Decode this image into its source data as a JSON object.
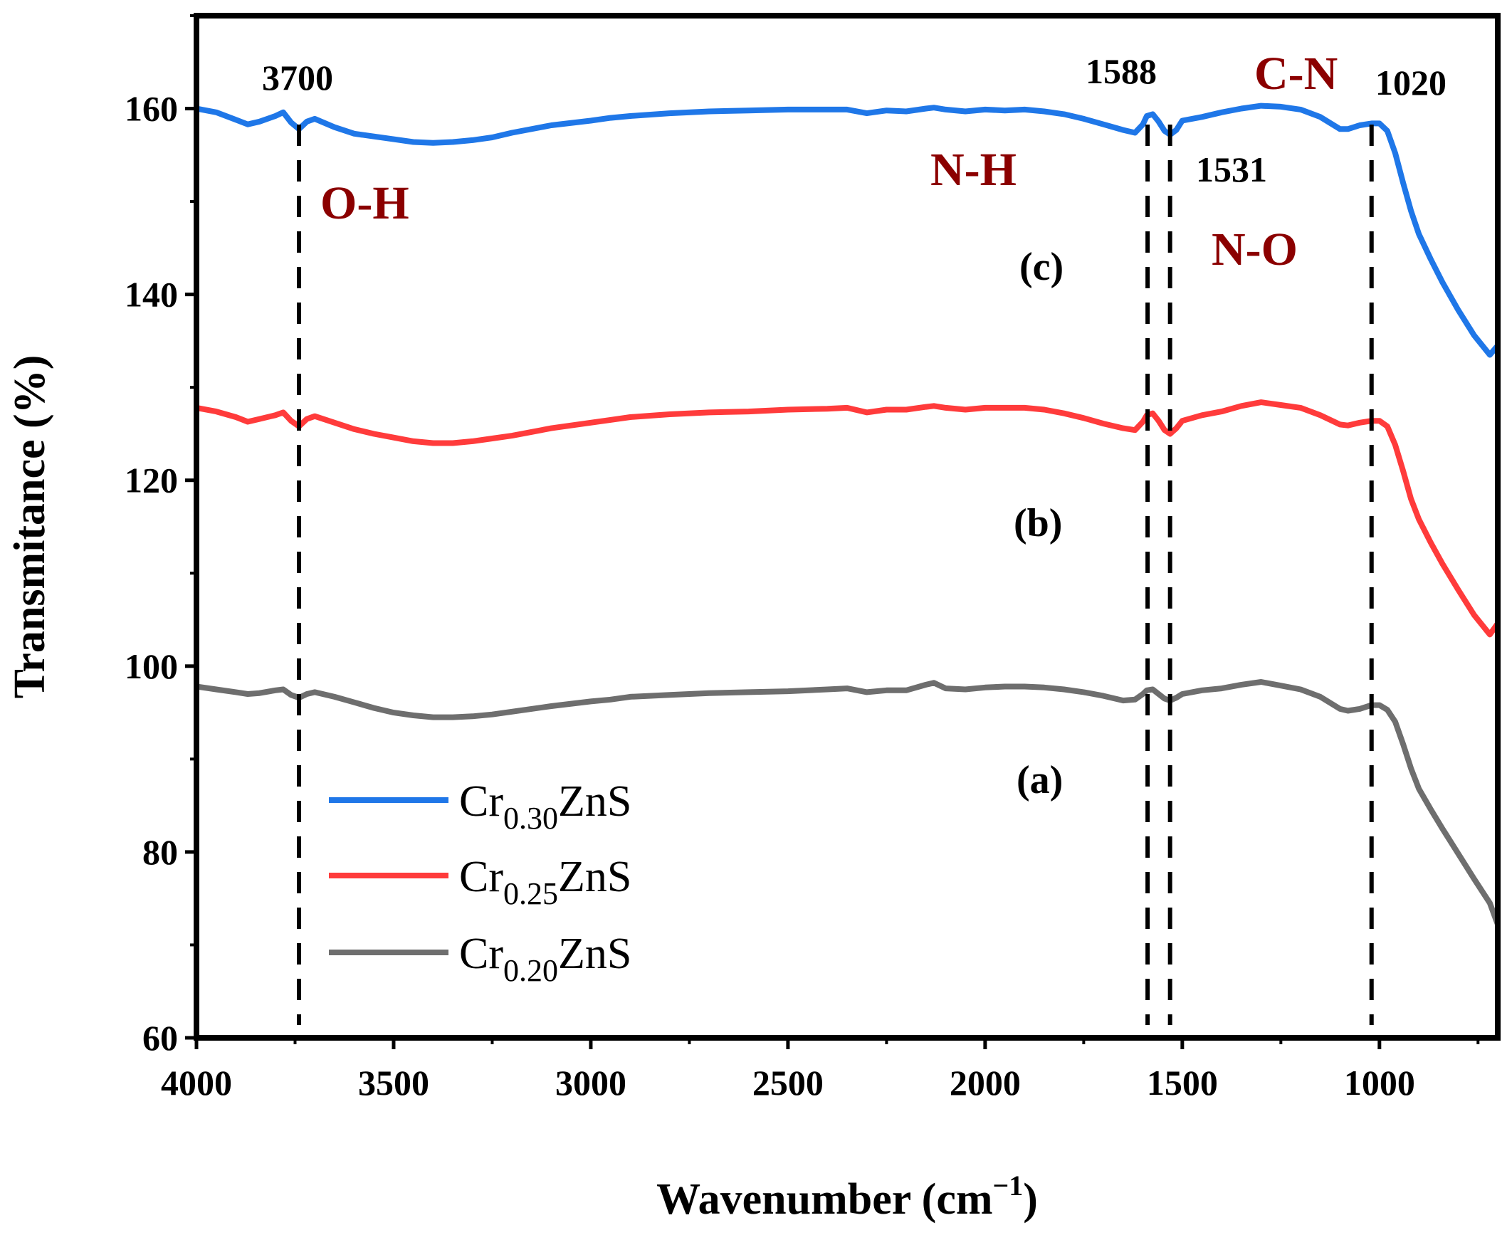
{
  "chart_data": {
    "type": "line",
    "title": "",
    "xlabel": "Wavenumber (cm",
    "xlabel_sup": "−1",
    "xlabel_close": ")",
    "ylabel": "Transmitance (%)",
    "xlim": [
      4000,
      700
    ],
    "ylim": [
      60,
      170
    ],
    "x_ticks": [
      4000,
      3500,
      3000,
      2500,
      2000,
      1500,
      1000
    ],
    "y_ticks": [
      60,
      80,
      100,
      120,
      140,
      160
    ],
    "grid": false,
    "legend_position": "lower-left",
    "series": [
      {
        "name": "Cr0.30ZnS",
        "label_base": "Cr",
        "label_sub": "0.30",
        "label_suffix": "ZnS",
        "color": "#1f77e8",
        "curve_label": "(c)",
        "x": [
          4000,
          3950,
          3900,
          3870,
          3840,
          3800,
          3780,
          3760,
          3740,
          3720,
          3700,
          3650,
          3600,
          3550,
          3500,
          3450,
          3400,
          3350,
          3300,
          3250,
          3200,
          3100,
          3000,
          2950,
          2900,
          2800,
          2700,
          2600,
          2500,
          2400,
          2350,
          2300,
          2250,
          2200,
          2150,
          2130,
          2100,
          2050,
          2000,
          1950,
          1900,
          1850,
          1800,
          1750,
          1700,
          1650,
          1620,
          1600,
          1590,
          1575,
          1560,
          1545,
          1531,
          1515,
          1500,
          1450,
          1400,
          1350,
          1300,
          1250,
          1200,
          1150,
          1100,
          1080,
          1050,
          1020,
          1000,
          980,
          960,
          940,
          920,
          900,
          870,
          840,
          800,
          760,
          720,
          700
        ],
        "values": [
          160,
          159.6,
          158.8,
          158.3,
          158.6,
          159.2,
          159.6,
          158.5,
          157.8,
          158.6,
          158.9,
          158.0,
          157.3,
          157.0,
          156.7,
          156.4,
          156.3,
          156.4,
          156.6,
          156.9,
          157.4,
          158.2,
          158.7,
          159.0,
          159.2,
          159.5,
          159.7,
          159.8,
          159.9,
          159.9,
          159.9,
          159.5,
          159.8,
          159.7,
          160.0,
          160.1,
          159.9,
          159.7,
          159.9,
          159.8,
          159.9,
          159.7,
          159.4,
          158.9,
          158.3,
          157.7,
          157.4,
          158.3,
          159.2,
          159.4,
          158.6,
          157.6,
          157.2,
          157.7,
          158.7,
          159.1,
          159.6,
          160.0,
          160.3,
          160.2,
          159.9,
          159.1,
          157.8,
          157.8,
          158.2,
          158.4,
          158.4,
          157.6,
          155.2,
          152.0,
          149.0,
          146.5,
          143.8,
          141.3,
          138.3,
          135.6,
          133.5,
          134.5
        ]
      },
      {
        "name": "Cr0.25ZnS",
        "label_base": "Cr",
        "label_sub": "0.25",
        "label_suffix": "ZnS",
        "color": "#ff3b3b",
        "curve_label": "(b)",
        "x": [
          4000,
          3950,
          3900,
          3870,
          3840,
          3800,
          3780,
          3760,
          3740,
          3720,
          3700,
          3650,
          3600,
          3550,
          3500,
          3450,
          3400,
          3350,
          3300,
          3250,
          3200,
          3100,
          3000,
          2950,
          2900,
          2800,
          2700,
          2600,
          2500,
          2400,
          2350,
          2300,
          2250,
          2200,
          2150,
          2130,
          2100,
          2050,
          2000,
          1950,
          1900,
          1850,
          1800,
          1750,
          1700,
          1650,
          1620,
          1600,
          1590,
          1575,
          1560,
          1545,
          1531,
          1515,
          1500,
          1450,
          1400,
          1350,
          1300,
          1250,
          1200,
          1150,
          1100,
          1080,
          1050,
          1020,
          1000,
          980,
          960,
          940,
          920,
          900,
          870,
          840,
          800,
          760,
          720,
          700
        ],
        "values": [
          127.8,
          127.4,
          126.8,
          126.3,
          126.6,
          127.0,
          127.3,
          126.4,
          125.8,
          126.6,
          126.9,
          126.2,
          125.5,
          125.0,
          124.6,
          124.2,
          124.0,
          124.0,
          124.2,
          124.5,
          124.8,
          125.6,
          126.2,
          126.5,
          126.8,
          127.1,
          127.3,
          127.4,
          127.6,
          127.7,
          127.8,
          127.3,
          127.6,
          127.6,
          127.9,
          128.0,
          127.8,
          127.6,
          127.8,
          127.8,
          127.8,
          127.6,
          127.2,
          126.7,
          126.1,
          125.6,
          125.4,
          126.3,
          127.0,
          127.2,
          126.4,
          125.4,
          125.0,
          125.6,
          126.4,
          127.0,
          127.4,
          128.0,
          128.4,
          128.1,
          127.8,
          127.0,
          126.0,
          125.9,
          126.2,
          126.4,
          126.4,
          125.8,
          123.8,
          121.0,
          118.0,
          115.8,
          113.3,
          111.0,
          108.2,
          105.5,
          103.4,
          104.6
        ]
      },
      {
        "name": "Cr0.20ZnS",
        "label_base": "Cr",
        "label_sub": "0.20",
        "label_suffix": "ZnS",
        "color": "#6e6e6e",
        "curve_label": "(a)",
        "x": [
          4000,
          3950,
          3900,
          3870,
          3840,
          3800,
          3780,
          3760,
          3740,
          3720,
          3700,
          3650,
          3600,
          3550,
          3500,
          3450,
          3400,
          3350,
          3300,
          3250,
          3200,
          3100,
          3000,
          2950,
          2900,
          2800,
          2700,
          2600,
          2500,
          2400,
          2350,
          2300,
          2250,
          2200,
          2150,
          2130,
          2100,
          2050,
          2000,
          1950,
          1900,
          1850,
          1800,
          1750,
          1700,
          1650,
          1620,
          1600,
          1590,
          1575,
          1560,
          1545,
          1531,
          1515,
          1500,
          1450,
          1400,
          1350,
          1300,
          1250,
          1200,
          1150,
          1100,
          1080,
          1050,
          1020,
          1000,
          980,
          960,
          940,
          920,
          900,
          870,
          840,
          800,
          760,
          720,
          700
        ],
        "values": [
          97.8,
          97.5,
          97.2,
          97.0,
          97.1,
          97.4,
          97.5,
          96.9,
          96.6,
          97.0,
          97.2,
          96.7,
          96.1,
          95.5,
          95.0,
          94.7,
          94.5,
          94.5,
          94.6,
          94.8,
          95.1,
          95.7,
          96.2,
          96.4,
          96.7,
          96.9,
          97.1,
          97.2,
          97.3,
          97.5,
          97.6,
          97.2,
          97.4,
          97.4,
          98.0,
          98.2,
          97.6,
          97.5,
          97.7,
          97.8,
          97.8,
          97.7,
          97.5,
          97.2,
          96.8,
          96.3,
          96.4,
          97.0,
          97.4,
          97.5,
          97.0,
          96.5,
          96.3,
          96.6,
          97.0,
          97.4,
          97.6,
          98.0,
          98.3,
          97.9,
          97.5,
          96.7,
          95.4,
          95.2,
          95.4,
          95.8,
          95.8,
          95.3,
          94.0,
          91.6,
          89.0,
          86.8,
          84.6,
          82.5,
          79.8,
          77.1,
          74.5,
          72.2
        ]
      }
    ],
    "reference_lines": [
      3740,
      1588,
      1531,
      1020
    ],
    "annotations": {
      "numbers": [
        "3700",
        "1588",
        "1531",
        "1020"
      ],
      "groups": [
        "O-H",
        "N-H",
        "N-O",
        "C-N"
      ],
      "curve_labels": [
        "(c)",
        "(b)",
        "(a)"
      ]
    }
  }
}
